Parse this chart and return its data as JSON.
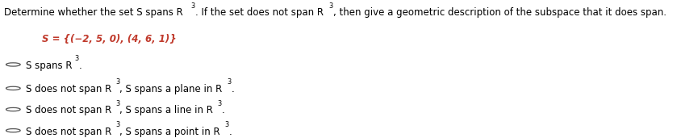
{
  "background_color": "#ffffff",
  "header_text": "Determine whether the set S spans R",
  "header_sup": "3",
  "header_text2": ". If the set does not span R",
  "header_sup2": "3",
  "header_text3": ", then give a geometric description of the subspace that it does span.",
  "set_label": "S = {(−2, 5, 0), (4, 6, 1)}",
  "options": [
    {
      "text": "S spans R",
      "sup": "3",
      "tail": "."
    },
    {
      "text": "S does not span R",
      "sup": "3",
      "mid": ", S spans a plane in R",
      "sup2": "3",
      "tail": "."
    },
    {
      "text": "S does not span R",
      "sup": "3",
      "mid": ", S spans a line in R",
      "sup2": "3",
      "tail": "."
    },
    {
      "text": "S does not span R",
      "sup": "3",
      "mid": ", S spans a point in R",
      "sup2": "3",
      "tail": "."
    }
  ],
  "text_color": "#000000",
  "set_color": "#c0392b",
  "font_size": 8.5,
  "circle_color": "#555555",
  "line_color": "#cccccc"
}
